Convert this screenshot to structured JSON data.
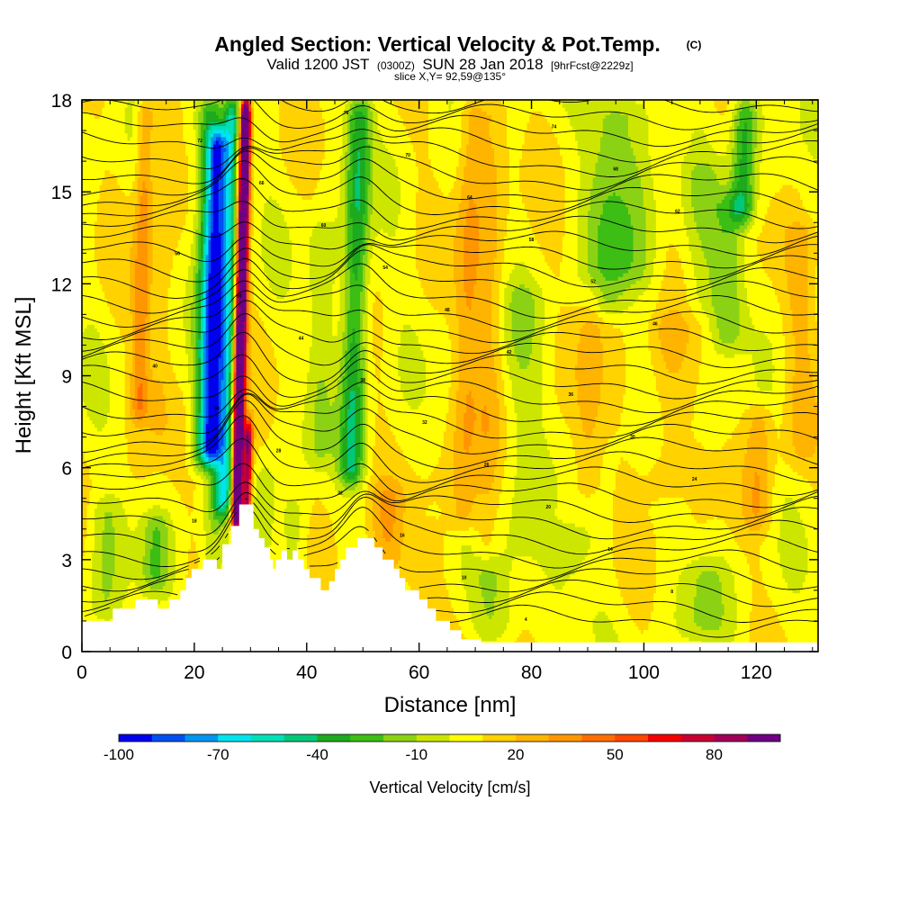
{
  "chart_data": {
    "type": "heatmap",
    "title": "Angled Section: Vertical Velocity & Pot.Temp.",
    "title_mark": "(C)",
    "subtitle": {
      "valid": "Valid 1200 JST",
      "utc": "(0300Z)",
      "date": "SUN 28 Jan 2018",
      "fcst": "[9hrFcst@2229z]"
    },
    "slice_label": "slice X,Y= 92,59@135°",
    "xlabel": "Distance [nm]",
    "ylabel": "Height [Kft MSL]",
    "xlim": [
      0,
      131
    ],
    "ylim": [
      0,
      18
    ],
    "x_ticks": [
      "0",
      "20",
      "40",
      "60",
      "80",
      "100",
      "120"
    ],
    "y_ticks": [
      "0",
      "3",
      "6",
      "9",
      "12",
      "15",
      "18"
    ],
    "colorbar": {
      "label": "Vertical Velocity [cm/s]",
      "tick_labels": [
        "-100",
        "-70",
        "-40",
        "-10",
        "20",
        "50",
        "80"
      ],
      "min": -100,
      "max": 100,
      "step": 10,
      "colors": [
        "#0000ee",
        "#0050f0",
        "#0096f0",
        "#00e4f0",
        "#00e0b8",
        "#00c878",
        "#1eaa1e",
        "#3cbe14",
        "#8cd214",
        "#cde600",
        "#ffff00",
        "#ffd200",
        "#ffb400",
        "#ff9600",
        "#ff6e00",
        "#ff4600",
        "#f50000",
        "#c80032",
        "#a0005a",
        "#6e0082"
      ]
    },
    "velocity_features": [
      {
        "x": 28.2,
        "amplitude": 140,
        "width": 0.95,
        "z_from": 4.0,
        "z_to": 18
      },
      {
        "x": 30.0,
        "amplitude": 80,
        "width": 0.8,
        "z_from": 4.3,
        "z_to": 7.5
      },
      {
        "x": 25.8,
        "amplitude": -55,
        "width": 1.6,
        "z_from": 4.5,
        "z_to": 18
      },
      {
        "x": 23.5,
        "amplitude": -75,
        "width": 1.8,
        "z_from": 6.2,
        "z_to": 17
      },
      {
        "x": 22.0,
        "amplitude": -40,
        "width": 2.2,
        "z_from": 6,
        "z_to": 18
      },
      {
        "x": 48.5,
        "amplitude": -45,
        "width": 2.2,
        "z_from": 5.5,
        "z_to": 18
      },
      {
        "x": 42.5,
        "amplitude": -15,
        "width": 2.5,
        "z_from": 6,
        "z_to": 14
      },
      {
        "x": 10.5,
        "amplitude": 30,
        "width": 1.6,
        "z_from": 7.5,
        "z_to": 18
      },
      {
        "x": 14.0,
        "amplitude": 12,
        "width": 2.0,
        "z_from": 7,
        "z_to": 18
      },
      {
        "x": 68.5,
        "amplitude": 22,
        "width": 2.5,
        "z_from": 4,
        "z_to": 18
      },
      {
        "x": 72.5,
        "amplitude": 14,
        "width": 2.5,
        "z_from": 3,
        "z_to": 18
      },
      {
        "x": 78.0,
        "amplitude": -12,
        "width": 4.0,
        "z_from": 3,
        "z_to": 12
      },
      {
        "x": 90.5,
        "amplitude": 15,
        "width": 2.5,
        "z_from": 5,
        "z_to": 12
      },
      {
        "x": 93.0,
        "amplitude": -22,
        "width": 4.0,
        "z_from": 11,
        "z_to": 18
      },
      {
        "x": 98.0,
        "amplitude": -15,
        "width": 4.0,
        "z_from": 12,
        "z_to": 18
      },
      {
        "x": 104.0,
        "amplitude": 14,
        "width": 3.5,
        "z_from": 5,
        "z_to": 11
      },
      {
        "x": 110.0,
        "amplitude": -12,
        "width": 4.0,
        "z_from": 11,
        "z_to": 16
      },
      {
        "x": 117.0,
        "amplitude": -40,
        "width": 2.2,
        "z_from": 14,
        "z_to": 18
      },
      {
        "x": 115.0,
        "amplitude": -22,
        "width": 3.0,
        "z_from": 10,
        "z_to": 15
      },
      {
        "x": 121.0,
        "amplitude": 18,
        "width": 2.5,
        "z_from": 4,
        "z_to": 8
      },
      {
        "x": 127.5,
        "amplitude": 12,
        "width": 3.0,
        "z_from": 6,
        "z_to": 14
      },
      {
        "x": 5.0,
        "amplitude": -15,
        "width": 3.0,
        "z_from": 1,
        "z_to": 5
      },
      {
        "x": 14.0,
        "amplitude": -22,
        "width": 2.5,
        "z_from": 2,
        "z_to": 4.5
      },
      {
        "x": 24.0,
        "amplitude": -15,
        "width": 2.0,
        "z_from": 2,
        "z_to": 6
      },
      {
        "x": 33.0,
        "amplitude": -14,
        "width": 2.0,
        "z_from": 3,
        "z_to": 6
      },
      {
        "x": 38.5,
        "amplitude": -14,
        "width": 2.5,
        "z_from": 2.2,
        "z_to": 5
      },
      {
        "x": 55.0,
        "amplitude": 18,
        "width": 3.0,
        "z_from": 2.5,
        "z_to": 5.5
      },
      {
        "x": 62.0,
        "amplitude": 12,
        "width": 3.0,
        "z_from": 1.5,
        "z_to": 4
      },
      {
        "x": 75.0,
        "amplitude": -14,
        "width": 4.0,
        "z_from": 0.5,
        "z_to": 3
      },
      {
        "x": 86.0,
        "amplitude": -12,
        "width": 5.0,
        "z_from": 0.5,
        "z_to": 4
      },
      {
        "x": 112.0,
        "amplitude": -15,
        "width": 4.0,
        "z_from": 0.5,
        "z_to": 3
      }
    ],
    "isentropes": {
      "count": 38,
      "level_labels": [
        "80",
        "76",
        "74",
        "72",
        "70",
        "68",
        "66",
        "64",
        "62",
        "60",
        "58",
        "56",
        "54",
        "52",
        "50",
        "48",
        "46",
        "44",
        "42",
        "40",
        "38",
        "36",
        "34",
        "32",
        "30",
        "28",
        "26",
        "24",
        "22",
        "20",
        "18",
        "16",
        "14",
        "12",
        "10",
        "8",
        "6",
        "4"
      ]
    },
    "terrain_kft": [
      [
        0,
        1.0
      ],
      [
        3.5,
        1.0
      ],
      [
        3.5,
        1.0
      ],
      [
        5.5,
        1.0
      ],
      [
        5.5,
        1.4
      ],
      [
        9.5,
        1.4
      ],
      [
        9.5,
        1.7
      ],
      [
        13.5,
        1.7
      ],
      [
        13.5,
        1.4
      ],
      [
        15.5,
        1.4
      ],
      [
        15.5,
        1.7
      ],
      [
        17.5,
        1.7
      ],
      [
        17.5,
        2.0
      ],
      [
        18.5,
        2.0
      ],
      [
        18.5,
        2.4
      ],
      [
        19.5,
        2.4
      ],
      [
        19.5,
        2.7
      ],
      [
        21.5,
        2.7
      ],
      [
        21.5,
        3.0
      ],
      [
        24.0,
        3.0
      ],
      [
        24.0,
        2.7
      ],
      [
        25.0,
        2.7
      ],
      [
        25.0,
        3.5
      ],
      [
        26.5,
        3.5
      ],
      [
        26.5,
        4.1
      ],
      [
        28.0,
        4.1
      ],
      [
        28.0,
        4.8
      ],
      [
        30.5,
        4.8
      ],
      [
        30.5,
        4.0
      ],
      [
        31.5,
        4.0
      ],
      [
        31.5,
        3.7
      ],
      [
        32.5,
        3.7
      ],
      [
        32.5,
        3.4
      ],
      [
        33.5,
        3.4
      ],
      [
        33.5,
        3.0
      ],
      [
        34.0,
        3.0
      ],
      [
        34.0,
        2.7
      ],
      [
        34.5,
        2.7
      ],
      [
        34.5,
        3.0
      ],
      [
        35.5,
        3.0
      ],
      [
        35.5,
        3.3
      ],
      [
        36.5,
        3.3
      ],
      [
        36.5,
        3.0
      ],
      [
        37.5,
        3.0
      ],
      [
        37.5,
        3.3
      ],
      [
        38.5,
        3.3
      ],
      [
        38.5,
        3.0
      ],
      [
        39.5,
        3.0
      ],
      [
        39.5,
        2.7
      ],
      [
        40.5,
        2.7
      ],
      [
        40.5,
        2.4
      ],
      [
        42.5,
        2.4
      ],
      [
        42.5,
        2.0
      ],
      [
        44.0,
        2.0
      ],
      [
        44.0,
        2.3
      ],
      [
        45.0,
        2.3
      ],
      [
        45.0,
        2.7
      ],
      [
        46.0,
        2.7
      ],
      [
        46.0,
        3.0
      ],
      [
        47.0,
        3.0
      ],
      [
        47.0,
        3.4
      ],
      [
        49.0,
        3.4
      ],
      [
        49.0,
        3.7
      ],
      [
        52.0,
        3.7
      ],
      [
        52.0,
        3.4
      ],
      [
        53.5,
        3.4
      ],
      [
        53.5,
        3.0
      ],
      [
        55.5,
        3.0
      ],
      [
        55.5,
        2.7
      ],
      [
        56.5,
        2.7
      ],
      [
        56.5,
        2.4
      ],
      [
        57.5,
        2.4
      ],
      [
        57.5,
        2.0
      ],
      [
        60.0,
        2.0
      ],
      [
        60.0,
        1.7
      ],
      [
        61.5,
        1.7
      ],
      [
        61.5,
        1.4
      ],
      [
        63.0,
        1.4
      ],
      [
        63.0,
        1.0
      ],
      [
        65.5,
        1.0
      ],
      [
        65.5,
        0.7
      ],
      [
        67.5,
        0.7
      ],
      [
        67.5,
        0.4
      ],
      [
        71.0,
        0.4
      ],
      [
        71.0,
        0.3
      ],
      [
        131,
        0.3
      ]
    ]
  }
}
